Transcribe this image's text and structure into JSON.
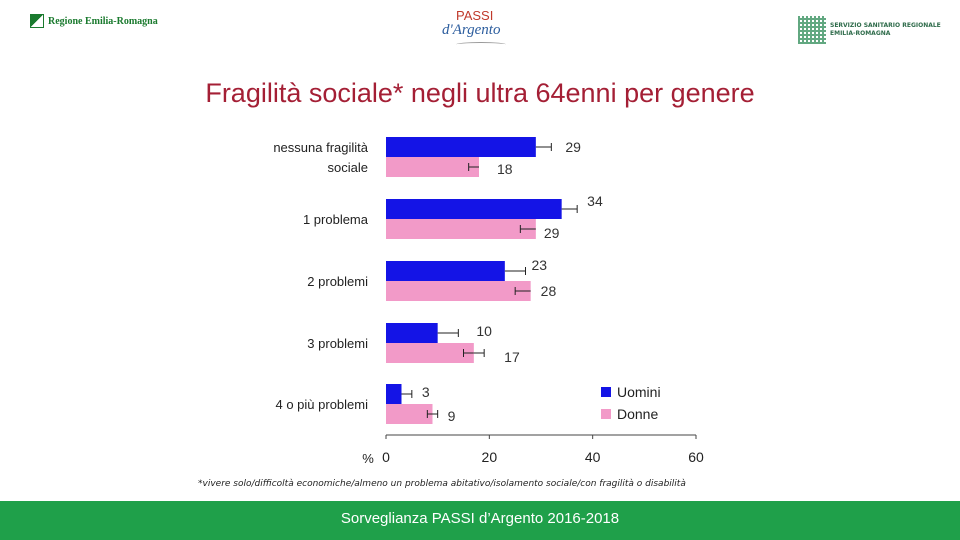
{
  "header": {
    "left_logo_text": "Regione Emilia-Romagna",
    "center_logo_line1": "PASSI",
    "center_logo_line2": "d'Argento",
    "right_logo_line1": "SERVIZIO SANITARIO REGIONALE",
    "right_logo_line2": "EMILIA-ROMAGNA"
  },
  "title": "Fragilità sociale* negli ultra 64enni per genere",
  "footnote": "*vivere solo/difficoltà economiche/almeno un problema abitativo/isolamento sociale/con fragilità o disabilità",
  "footer": "Sorveglianza PASSI d’Argento 2016-2018",
  "chart_data": {
    "type": "bar",
    "orientation": "horizontal",
    "categories": [
      "nessuna fragilità sociale",
      "1 problema",
      "2 problemi",
      "3 problemi",
      "4 o più problemi"
    ],
    "category_lines": [
      [
        "nessuna fragilità",
        "sociale"
      ],
      [
        "1 problema"
      ],
      [
        "2 problemi"
      ],
      [
        "3 problemi"
      ],
      [
        "4 o più problemi"
      ]
    ],
    "series": [
      {
        "name": "Uomini",
        "color": "#1414e6",
        "values": [
          29,
          34,
          23,
          10,
          3
        ],
        "ci_high": [
          32,
          37,
          27,
          14,
          5
        ]
      },
      {
        "name": "Donne",
        "color": "#f29ac8",
        "values": [
          18,
          29,
          28,
          17,
          9
        ],
        "ci_low": [
          16,
          26,
          25,
          15,
          8
        ],
        "ci_high": [
          null,
          null,
          null,
          19,
          10
        ]
      }
    ],
    "xlim": [
      0,
      60
    ],
    "xticks": [
      0,
      20,
      40,
      60
    ],
    "xlabel": "%",
    "legend_position": "bottom-right",
    "error_bars": true
  }
}
